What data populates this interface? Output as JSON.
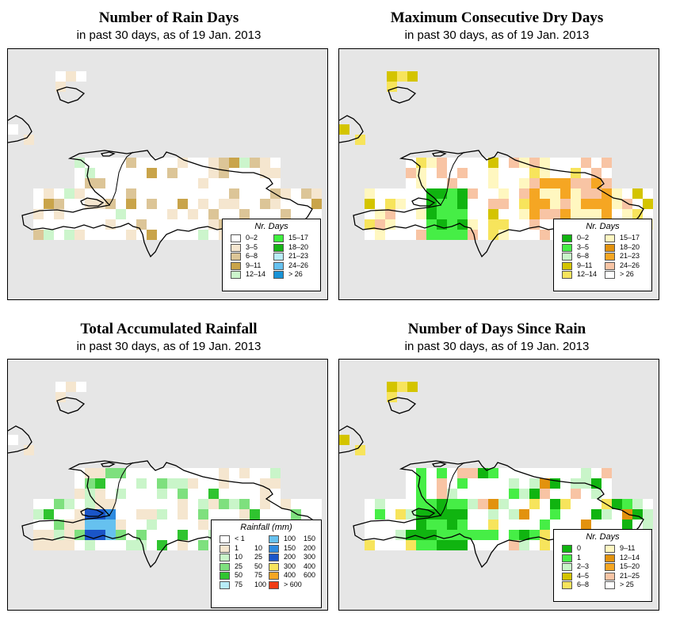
{
  "panels": [
    {
      "id": "rain-days",
      "title": "Number of Rain Days",
      "subtitle": "in past 30 days, as of  19 Jan. 2013",
      "legend": {
        "title": "Nr. Days",
        "items": [
          {
            "label": "0–2",
            "color": "#ffffff"
          },
          {
            "label": "3–5",
            "color": "#f5e6cf"
          },
          {
            "label": "6–8",
            "color": "#dcc597"
          },
          {
            "label": "9–11",
            "color": "#c9a44a"
          },
          {
            "label": "12–14",
            "color": "#ccf5cc"
          },
          {
            "label": "15–17",
            "color": "#3ff03f"
          },
          {
            "label": "18–20",
            "color": "#16b416"
          },
          {
            "label": "21–23",
            "color": "#b8ecf8"
          },
          {
            "label": "24–26",
            "color": "#66c1ef"
          },
          {
            "label": "> 26",
            "color": "#1892d6"
          }
        ]
      }
    },
    {
      "id": "dry-days",
      "title": "Maximum Consecutive Dry Days",
      "subtitle": "in past 30 days, as of  19 Jan. 2013",
      "legend": {
        "title": "Nr. Days",
        "items": [
          {
            "label": "0–2",
            "color": "#10b410"
          },
          {
            "label": "3–5",
            "color": "#46ee46"
          },
          {
            "label": "6–8",
            "color": "#c9f5c9"
          },
          {
            "label": "9–11",
            "color": "#d4c400"
          },
          {
            "label": "12–14",
            "color": "#f7e45c"
          },
          {
            "label": "15–17",
            "color": "#fff7c0"
          },
          {
            "label": "18–20",
            "color": "#e2920e"
          },
          {
            "label": "21–23",
            "color": "#f5a623"
          },
          {
            "label": "24–26",
            "color": "#f8c4a4"
          },
          {
            "label": "> 26",
            "color": "#ffffff"
          }
        ]
      }
    },
    {
      "id": "rainfall",
      "title": "Total Accumulated Rainfall",
      "subtitle": "in past 30 days, as of  19 Jan. 2013",
      "legend": {
        "title": "Rainfall (mm)",
        "items": [
          {
            "label": "< 1",
            "label2": "",
            "color": "#ffffff"
          },
          {
            "label": "1",
            "label2": "10",
            "color": "#f5e6cf"
          },
          {
            "label": "10",
            "label2": "25",
            "color": "#c9f5c9"
          },
          {
            "label": "25",
            "label2": "50",
            "color": "#7ee07e"
          },
          {
            "label": "50",
            "label2": "75",
            "color": "#2fc42f"
          },
          {
            "label": "75",
            "label2": "100",
            "color": "#b8ecf8"
          },
          {
            "label": "100",
            "label2": "150",
            "color": "#66c1ef"
          },
          {
            "label": "150",
            "label2": "200",
            "color": "#2e8be0"
          },
          {
            "label": "200",
            "label2": "300",
            "color": "#1a55c8"
          },
          {
            "label": "300",
            "label2": "400",
            "color": "#f7e45c"
          },
          {
            "label": "400",
            "label2": "600",
            "color": "#f5a623"
          },
          {
            "label": "> 600",
            "label2": "",
            "color": "#f03c14"
          }
        ]
      }
    },
    {
      "id": "since-rain",
      "title": "Number of Days Since Rain",
      "subtitle": "in past 30 days, as of  19 Jan. 2013",
      "legend": {
        "title": "Nr. Days",
        "items": [
          {
            "label": "0",
            "color": "#10b410"
          },
          {
            "label": "1",
            "color": "#46ee46"
          },
          {
            "label": "2–3",
            "color": "#c9f5c9"
          },
          {
            "label": "4–5",
            "color": "#d4c400"
          },
          {
            "label": "6–8",
            "color": "#f7e45c"
          },
          {
            "label": "9–11",
            "color": "#fff7c0"
          },
          {
            "label": "12–14",
            "color": "#e2920e"
          },
          {
            "label": "15–20",
            "color": "#f5a623"
          },
          {
            "label": "21–25",
            "color": "#f8c4a4"
          },
          {
            "label": "> 25",
            "color": "#ffffff"
          }
        ]
      }
    }
  ]
}
